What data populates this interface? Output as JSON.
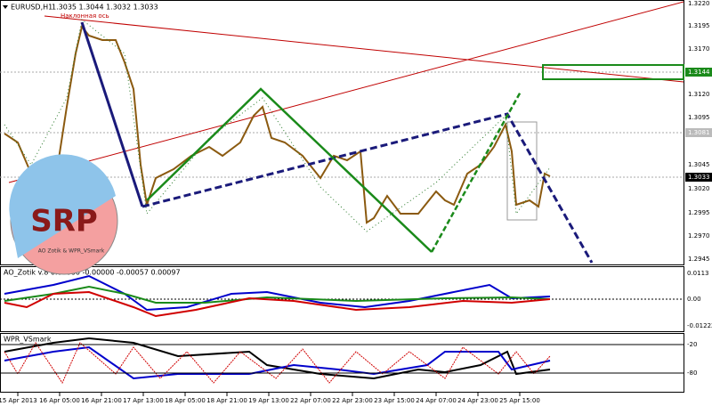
{
  "header": {
    "symbol": "EURUSD,H1",
    "ohlc": "1.3035 1.3044 1.3032 1.3033",
    "axis_note": "Наклонная ось"
  },
  "price_axis": [
    "1.3220",
    "1.3195",
    "1.3170",
    "1.3144",
    "1.3120",
    "1.3095",
    "1.3081",
    "1.3045",
    "1.3033",
    "1.3020",
    "1.2995",
    "1.2970",
    "1.2945"
  ],
  "indicator1": {
    "label": "AO_Zotik v.8 0.00080 -0.00000 -0.00057 0.00097",
    "axis": [
      "0.0113",
      "0.00",
      "-0.01222"
    ]
  },
  "indicator2": {
    "label": "WPR_VSmark",
    "axis": [
      "-20",
      "-80"
    ]
  },
  "time_axis": [
    "15 Apr 2013",
    "16 Apr 05:00",
    "16 Apr 21:00",
    "17 Apr 13:00",
    "18 Apr 05:00",
    "18 Apr 21:00",
    "19 Apr 13:00",
    "22 Apr 07:00",
    "22 Apr 23:00",
    "23 Apr 15:00",
    "24 Apr 07:00",
    "24 Apr 23:00",
    "25 Apr 15:00"
  ],
  "logo": {
    "text": "SRP",
    "caption": "AO Zotik & WPR_VSmark"
  }
}
